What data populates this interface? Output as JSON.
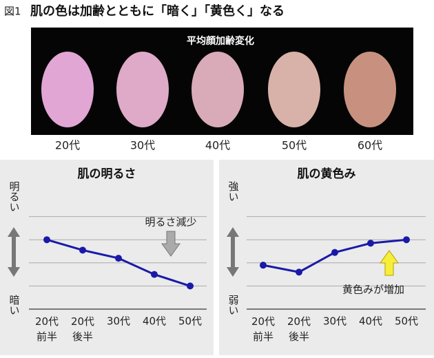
{
  "figure_label": "図1",
  "heading": "肌の色は加齢とともに「暗く」「黄色く」なる",
  "photo": {
    "label": "平均顔加齢変化",
    "ages": [
      "20代",
      "30代",
      "40代",
      "50代",
      "60代"
    ]
  },
  "chart_data": [
    {
      "type": "line",
      "title": "肌の明るさ",
      "y_label_top": "明るい",
      "y_label_bottom": "暗い",
      "annotation": "明るさ減少",
      "categories": [
        "20代\n前半",
        "20代\n後半",
        "30代",
        "40代",
        "50代"
      ],
      "values": [
        3.0,
        2.55,
        2.2,
        1.5,
        1.0
      ],
      "color": "#1a1aa8",
      "ylim": [
        0,
        5
      ],
      "yticks": [
        1,
        2,
        3,
        4
      ],
      "grid": true
    },
    {
      "type": "line",
      "title": "肌の黄色み",
      "y_label_top": "強い",
      "y_label_bottom": "弱い",
      "annotation": "黄色みが増加",
      "categories": [
        "20代\n前半",
        "20代\n後半",
        "30代",
        "40代",
        "50代"
      ],
      "values": [
        1.9,
        1.6,
        2.45,
        2.85,
        3.0
      ],
      "color": "#1a1aa8",
      "ylim": [
        0,
        5
      ],
      "yticks": [
        1,
        2,
        3,
        4
      ],
      "grid": true
    }
  ]
}
